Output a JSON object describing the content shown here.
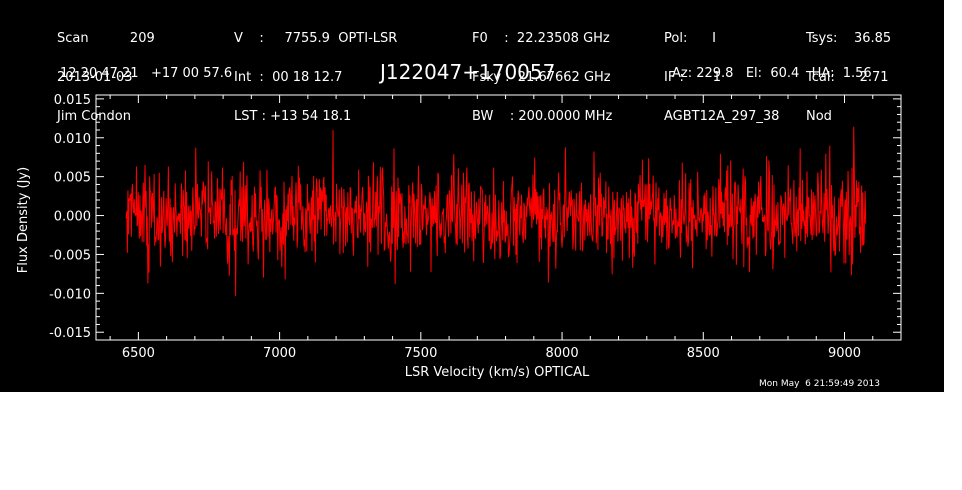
{
  "header": {
    "col1": [
      "Scan          209",
      "2013-01-03",
      "Jim Condon"
    ],
    "col2": [
      "V    :     7755.9  OPTI-LSR",
      "Int  :  00 18 12.7",
      "LST : +13 54 18.1"
    ],
    "col3": [
      "F0    :  22.23508 GHz",
      "Fsky :  21.67662 GHz",
      "BW    : 200.0000 MHz"
    ],
    "col4": [
      "Pol:      I",
      "IF :       1",
      "AGBT12A_297_38"
    ],
    "col5": [
      "Tsys:    36.85",
      "Tcal:      2.71",
      "Nod"
    ],
    "coords": "12 20 47.21   +17 00 57.6",
    "source": "J122047+170057",
    "pointing": "Az: 229.8   El:  60.4   HA:  1.56"
  },
  "timestamp": "Mon May  6 21:59:49 2013",
  "colors": {
    "background": "#000000",
    "axes": "#ffffff",
    "trace": "#ff0000"
  },
  "chart_data": {
    "type": "line",
    "xlabel": "LSR Velocity (km/s) OPTICAL",
    "ylabel": "Flux Density (Jy)",
    "xlim": [
      6350,
      9200
    ],
    "ylim": [
      -0.016,
      0.0155
    ],
    "xticks": [
      6500,
      7000,
      7500,
      8000,
      8500,
      9000
    ],
    "xtick_labels": [
      "6500",
      "7000",
      "7500",
      "8000",
      "8500",
      "9000"
    ],
    "yticks": [
      -0.015,
      -0.01,
      -0.005,
      0.0,
      0.005,
      0.01,
      0.015
    ],
    "ytick_labels": [
      "-0.015",
      "-0.010",
      "-0.005",
      "0.000",
      "0.005",
      "0.010",
      "0.015"
    ],
    "series": [
      {
        "x_start": 6455,
        "x_end": 9075,
        "mean": 0.0,
        "rms": 0.003,
        "min": -0.013,
        "max": 0.012,
        "n_points": 1300
      }
    ]
  }
}
